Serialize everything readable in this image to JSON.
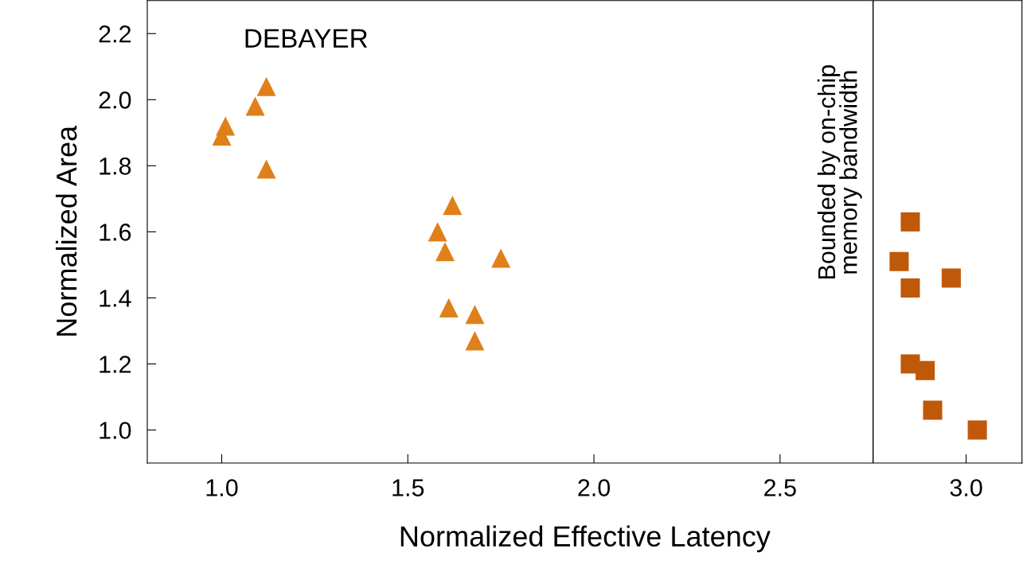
{
  "chart_data": {
    "type": "scatter",
    "xlabel": "Normalized Effective Latency",
    "ylabel": "Normalized Area",
    "annotations": [
      "DEBAYER"
    ],
    "xlim": [
      0.8,
      3.15
    ],
    "xticks": [
      {
        "value": 1.0,
        "label": "1.0"
      },
      1.5,
      {
        "value": 2.0,
        "label": "2.0"
      },
      2.5,
      {
        "value": 3.0,
        "label": "3.0"
      }
    ],
    "ylim": [
      0.9,
      2.3
    ],
    "yticks": [
      {
        "value": 1.0,
        "label": "1.0"
      },
      1.2,
      1.4,
      1.6,
      1.8,
      {
        "value": 2.0,
        "label": "2.0"
      },
      2.2
    ],
    "grid": false,
    "ref_lines": [
      {
        "axis": "x",
        "value": 2.75,
        "label": "Bounded by on-chip\nmemory bandwidth",
        "color": "#000000"
      }
    ],
    "series": [
      {
        "color": "#e0801a",
        "marker": "triangle",
        "x": [
          1.0,
          1.01,
          1.09,
          1.12,
          1.12,
          1.62,
          1.58,
          1.6,
          1.75,
          1.61,
          1.68,
          1.68
        ],
        "values": [
          1.89,
          1.92,
          1.98,
          2.04,
          1.79,
          1.68,
          1.6,
          1.54,
          1.52,
          1.37,
          1.35,
          1.27
        ]
      },
      {
        "color": "#c0580a",
        "marker": "square",
        "x": [
          2.85,
          2.82,
          2.85,
          2.96,
          2.85,
          2.89,
          2.91,
          3.03
        ],
        "values": [
          1.63,
          1.51,
          1.43,
          1.46,
          1.2,
          1.18,
          1.06,
          1.0
        ]
      }
    ]
  }
}
